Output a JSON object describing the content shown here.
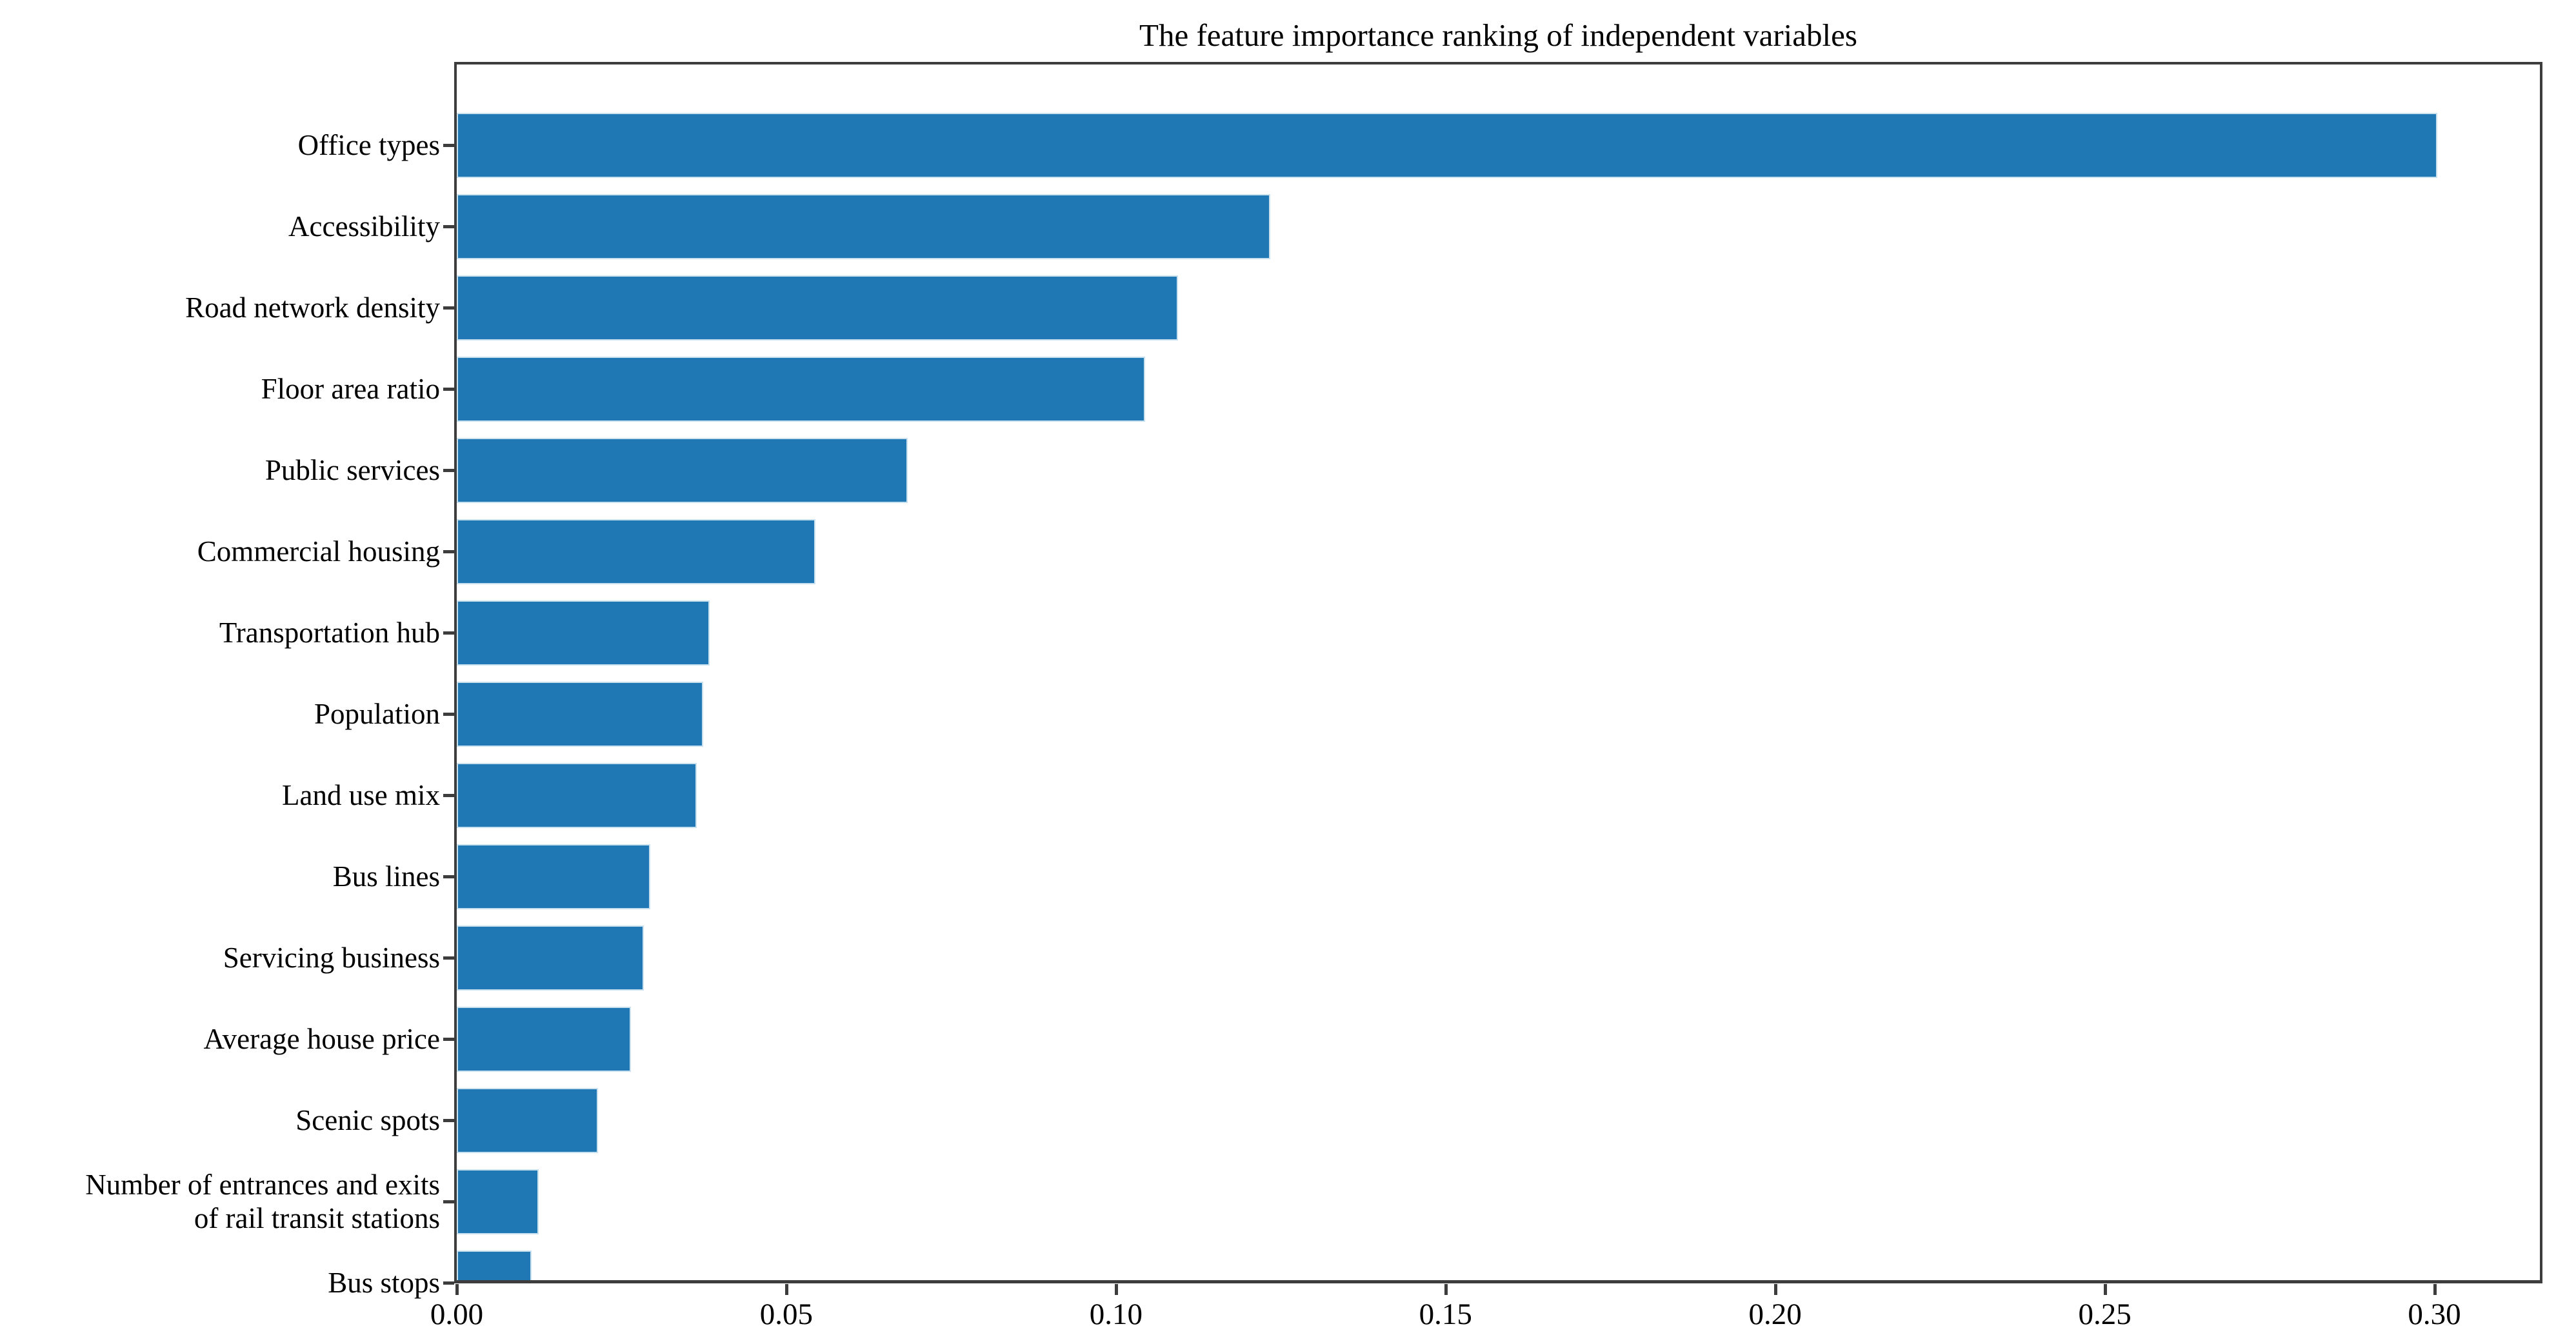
{
  "title": "The feature importance ranking of independent variables",
  "chart_data": {
    "type": "bar",
    "orientation": "horizontal",
    "title": "The feature importance ranking of independent variables",
    "categories": [
      "Office types",
      "Accessibility",
      "Road network density",
      "Floor area ratio",
      "Public services",
      "Commercial housing",
      "Transportation hub",
      "Population",
      "Land use mix",
      "Bus lines",
      "Servicing business",
      "Average house price",
      "Scenic spots",
      "Number of entrances and exits\nof rail transit stations",
      "Bus stops"
    ],
    "values": [
      0.3,
      0.123,
      0.109,
      0.104,
      0.068,
      0.054,
      0.038,
      0.037,
      0.036,
      0.029,
      0.028,
      0.026,
      0.021,
      0.012,
      0.011
    ],
    "xlabel": "",
    "ylabel": "",
    "xlim": [
      0,
      0.316
    ],
    "xticks": [
      0.0,
      0.05,
      0.1,
      0.15,
      0.2,
      0.25,
      0.3
    ],
    "xtick_labels": [
      "0.00",
      "0.05",
      "0.10",
      "0.15",
      "0.20",
      "0.25",
      "0.30"
    ],
    "bar_color": "#1f77b4",
    "axis_color": "#3d3d3d",
    "text_color": "#000000",
    "background_color": "#ffffff",
    "grid": false,
    "legend": "none",
    "bars_sorted_descending": true,
    "last_bar_clipped_by_axis": true
  }
}
